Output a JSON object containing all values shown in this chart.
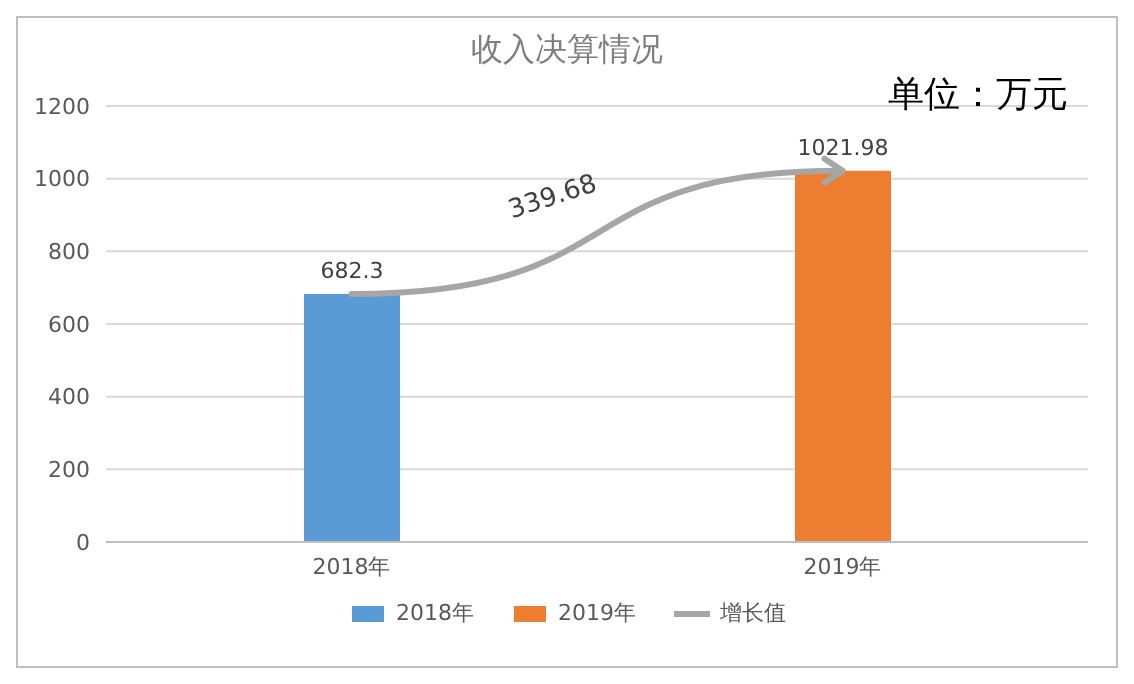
{
  "chart_data": {
    "type": "bar",
    "title": "收入决算情况",
    "categories": [
      "2018年",
      "2019年"
    ],
    "series": [
      {
        "name": "2018年",
        "color": "#5b9bd5",
        "values": [
          682.3,
          null
        ],
        "value_labels": [
          "682.3",
          null
        ]
      },
      {
        "name": "2019年",
        "color": "#ed7d31",
        "values": [
          null,
          1021.98
        ],
        "value_labels": [
          null,
          "1021.98"
        ]
      },
      {
        "name": "增长值",
        "type": "line",
        "color": "#a6a6a6",
        "values": [
          682.3,
          1021.98
        ]
      }
    ],
    "annotations": [
      "339.68",
      "单位：万元"
    ],
    "ylim": [
      0,
      1200
    ],
    "yticks": [
      0,
      200,
      400,
      600,
      800,
      1000,
      1200
    ],
    "grid": "y",
    "legend": "bottom"
  }
}
